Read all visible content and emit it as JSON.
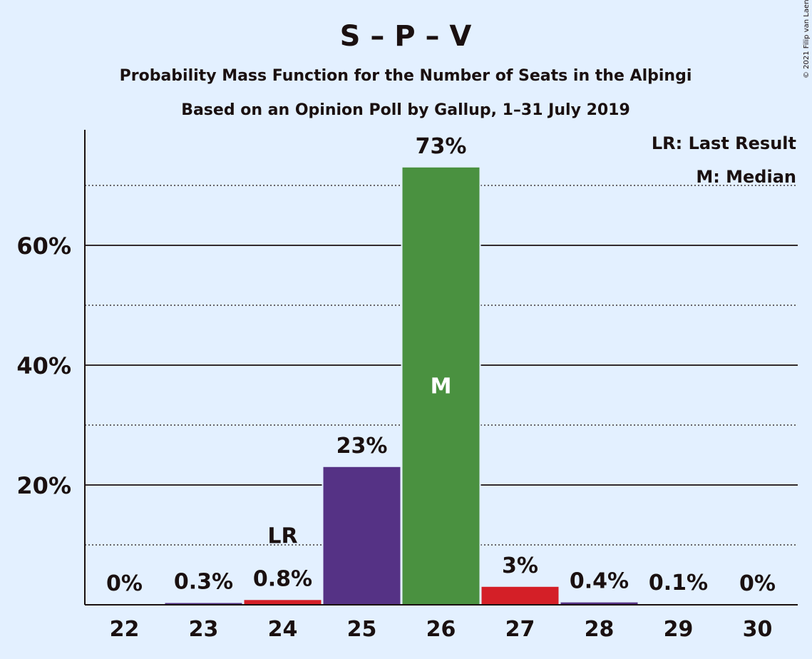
{
  "copyright": "© 2021 Filip van Laenen",
  "chart_data": {
    "type": "bar",
    "title": "S – P – V",
    "subtitle": "Probability Mass Function for the Number of Seats in the Alþingi",
    "subtitle2": "Based on an Opinion Poll by Gallup, 1–31 July 2019",
    "xlabel": "",
    "ylabel": "",
    "categories": [
      "22",
      "23",
      "24",
      "25",
      "26",
      "27",
      "28",
      "29",
      "30"
    ],
    "values": [
      0,
      0.3,
      0.8,
      23,
      73,
      3,
      0.4,
      0.1,
      0
    ],
    "value_labels": [
      "0%",
      "0.3%",
      "0.8%",
      "23%",
      "73%",
      "3%",
      "0.4%",
      "0.1%",
      "0%"
    ],
    "bar_colors": [
      "#553285",
      "#553285",
      "#d41f27",
      "#553285",
      "#4a9140",
      "#d41f27",
      "#553285",
      "#553285",
      "#553285"
    ],
    "ylim": [
      0,
      79
    ],
    "yticks": [
      20,
      40,
      60
    ],
    "ytick_labels": [
      "20%",
      "40%",
      "60%"
    ],
    "minor_gridlines": [
      10,
      30,
      50,
      70
    ],
    "last_result_category": "24",
    "last_result_marker": "LR",
    "median_category": "26",
    "median_marker": "M",
    "legend": {
      "position": "top-right",
      "entries": [
        "LR: Last Result",
        "M: Median"
      ]
    },
    "grid": true
  }
}
